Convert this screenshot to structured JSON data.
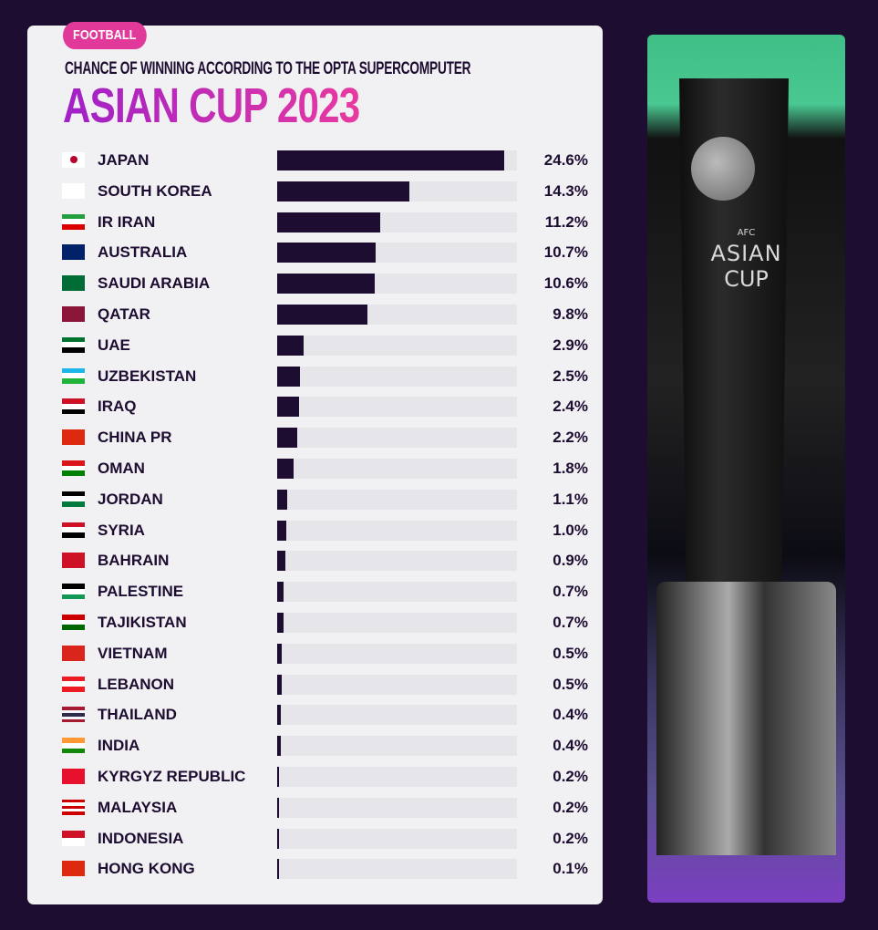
{
  "header": {
    "tag": "FOOTBALL",
    "subtitle": "CHANCE OF WINNING ACCORDING TO THE OPTA SUPERCOMPUTER",
    "title": "ASIAN CUP 2023"
  },
  "colors": {
    "background": "#1d0d31",
    "bar": "#1d0d31",
    "track": "#e6e5e9",
    "tag": "#e0399a",
    "title_gradient": [
      "#a020c8",
      "#e83aa0"
    ]
  },
  "photo": {
    "trophy_text_1": "AFC",
    "trophy_text_2": "ASIAN",
    "trophy_text_3": "CUP"
  },
  "chart_data": {
    "type": "bar",
    "orientation": "horizontal",
    "xlim": [
      0,
      26
    ],
    "unit": "%",
    "categories": [
      "JAPAN",
      "SOUTH KOREA",
      "IR IRAN",
      "AUSTRALIA",
      "SAUDI ARABIA",
      "QATAR",
      "UAE",
      "UZBEKISTAN",
      "IRAQ",
      "CHINA PR",
      "OMAN",
      "JORDAN",
      "SYRIA",
      "BAHRAIN",
      "PALESTINE",
      "TAJIKISTAN",
      "VIETNAM",
      "LEBANON",
      "THAILAND",
      "INDIA",
      "KYRGYZ REPUBLIC",
      "MALAYSIA",
      "INDONESIA",
      "HONG KONG"
    ],
    "values": [
      24.6,
      14.3,
      11.2,
      10.7,
      10.6,
      9.8,
      2.9,
      2.5,
      2.4,
      2.2,
      1.8,
      1.1,
      1.0,
      0.9,
      0.7,
      0.7,
      0.5,
      0.5,
      0.4,
      0.4,
      0.2,
      0.2,
      0.2,
      0.1
    ],
    "labels": [
      "24.6%",
      "14.3%",
      "11.2%",
      "10.7%",
      "10.6%",
      "9.8%",
      "2.9%",
      "2.5%",
      "2.4%",
      "2.2%",
      "1.8%",
      "1.1%",
      "1.0%",
      "0.9%",
      "0.7%",
      "0.7%",
      "0.5%",
      "0.5%",
      "0.4%",
      "0.4%",
      "0.2%",
      "0.2%",
      "0.2%",
      "0.1%"
    ]
  }
}
